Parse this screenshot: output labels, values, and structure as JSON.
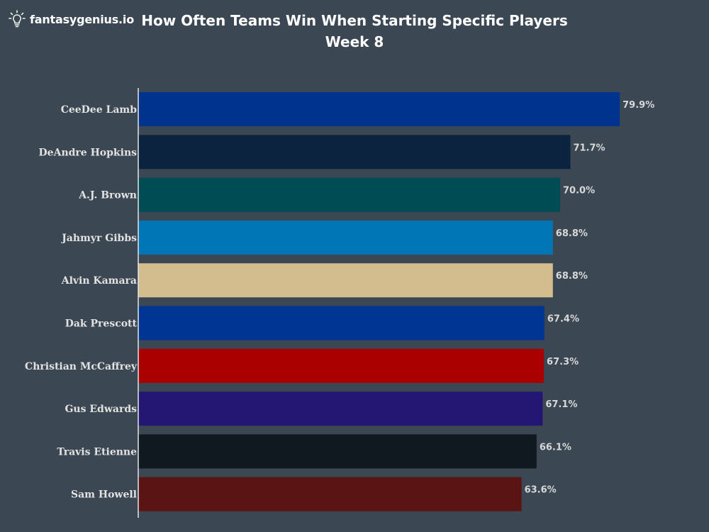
{
  "brand": {
    "name": "fantasygenius.io",
    "icon": "lightbulb-icon",
    "icon_color": "#f0f6ea"
  },
  "chart_data": {
    "type": "bar",
    "orientation": "horizontal",
    "title": "How Often Teams Win When Starting Specific Players",
    "subtitle": "Week 8",
    "xlabel": "",
    "ylabel": "",
    "xlim": [
      0,
      100
    ],
    "grid": false,
    "value_suffix": "%",
    "categories": [
      "CeeDee Lamb",
      "DeAndre Hopkins",
      "A.J. Brown",
      "Jahmyr Gibbs",
      "Alvin Kamara",
      "Dak Prescott",
      "Christian McCaffrey",
      "Gus Edwards",
      "Travis Etienne",
      "Sam Howell"
    ],
    "values": [
      79.9,
      71.7,
      70.0,
      68.8,
      68.8,
      67.4,
      67.3,
      67.1,
      66.1,
      63.6
    ],
    "value_labels": [
      "79.9%",
      "71.7%",
      "70.0%",
      "68.8%",
      "68.8%",
      "67.4%",
      "67.3%",
      "67.1%",
      "66.1%",
      "63.6%"
    ],
    "colors": [
      "#00338d",
      "#0c2340",
      "#004c54",
      "#0076b6",
      "#d3bc8d",
      "#003594",
      "#aa0000",
      "#241773",
      "#101820",
      "#5a1414"
    ]
  },
  "colors": {
    "background": "#3b4752",
    "text": "#ffffff",
    "axis_line": "#e6e6e6"
  }
}
